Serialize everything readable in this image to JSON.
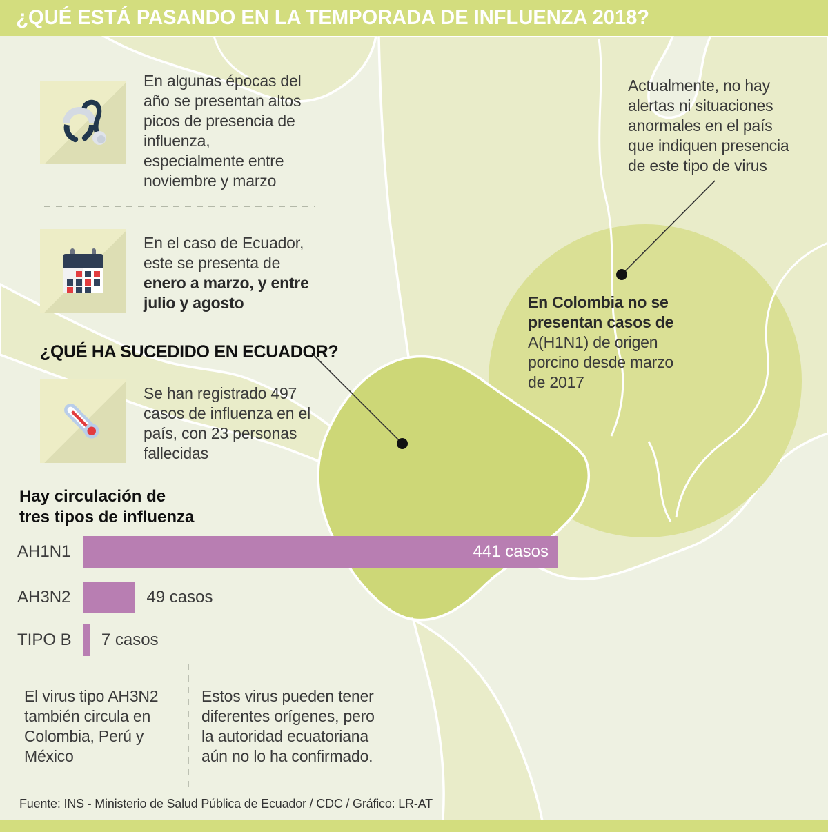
{
  "header": {
    "title": "¿QUÉ ESTÁ PASANDO EN LA TEMPORADA DE INFLUENZA 2018?"
  },
  "notes": {
    "seasonal": "En algunas épocas del\naño se presentan altos\npicos de presencia de\ninfluenza,\nespecialmente entre\nnoviembre y marzo",
    "ecuador_season_regular": "En el caso de Ecuador,\neste se presenta de",
    "ecuador_season_bold": "enero a marzo, y entre\njulio y agosto",
    "ecuador_heading": "¿QUÉ HA SUCEDIDO EN ECUADOR?",
    "registered": "Se han registrado 497\ncasos de influenza en el\npaís, con 23 personas\nfallecidas",
    "alert": "Actualmente, no hay\nalertas ni situaciones\nanormales en el país\nque indiquen presencia\nde este tipo de virus",
    "colombia_bold": "En Colombia no se\npresentan casos de",
    "colombia_regular": "A(H1N1) de origen\nporcino desde marzo\nde 2017",
    "bottom_left": "El virus tipo AH3N2\ntambién circula en\nColombia, Perú y\nMéxico",
    "bottom_right": "Estos virus pueden tener\ndiferentes orígenes, pero\nla autoridad ecuatoriana\naún no lo ha confirmado."
  },
  "chart_data": {
    "type": "bar",
    "orientation": "horizontal",
    "title": "Hay circulación de\ntres tipos de influenza",
    "categories": [
      "AH1N1",
      "AH3N2",
      "TIPO B"
    ],
    "values": [
      441,
      49,
      7
    ],
    "value_labels": [
      "441 casos",
      "49 casos",
      "7 casos"
    ],
    "bar_color": "#b87eb2",
    "value_label_position": [
      "inside-right",
      "outside",
      "outside"
    ]
  },
  "icons": {
    "block1": "stethoscope-icon",
    "block2": "calendar-icon",
    "block3": "thermometer-icon"
  },
  "source": "Fuente:  INS - Ministerio de Salud Pública de Ecuador / CDC / Gráfico: LR-AT",
  "colors": {
    "accent_green": "#d3dd7e",
    "map_land": "#e9ecc9",
    "map_highlight_ecuador": "#cdd777",
    "focus_circle": "#dae095",
    "bar_purple": "#b87eb2",
    "text": "#3a3a3a"
  }
}
